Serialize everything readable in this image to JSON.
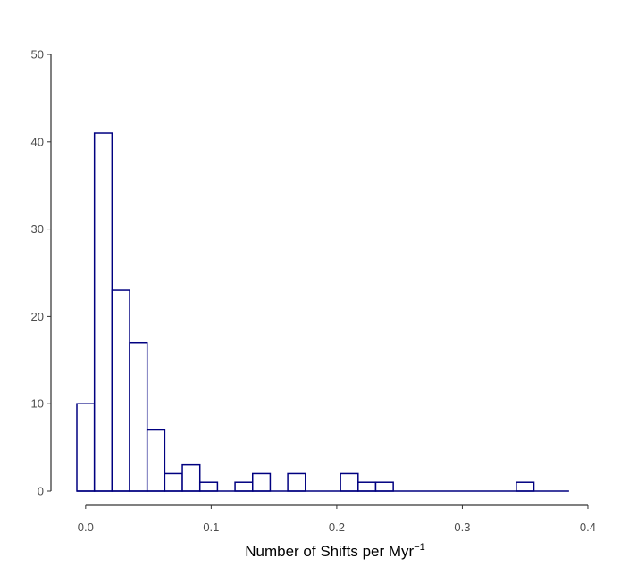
{
  "chart_data": {
    "type": "bar",
    "title": "",
    "xlabel": "Number of Shifts per Myr",
    "xlabel_superscript": "−1",
    "ylabel": "",
    "bin_width": 0.014,
    "bins_start": -0.007,
    "values": [
      10,
      41,
      23,
      17,
      7,
      2,
      3,
      1,
      0,
      1,
      2,
      0,
      2,
      0,
      0,
      2,
      1,
      1,
      0,
      0,
      0,
      0,
      0,
      0,
      0,
      1,
      0,
      0
    ],
    "xlim": [
      -0.007,
      0.405
    ],
    "ylim": [
      0,
      50
    ],
    "x_ticks": [
      0.0,
      0.1,
      0.2,
      0.3,
      0.4
    ],
    "x_tick_labels": [
      "0.0",
      "0.1",
      "0.2",
      "0.3",
      "0.4"
    ],
    "y_ticks": [
      0,
      10,
      20,
      30,
      40,
      50
    ],
    "y_tick_labels": [
      "0",
      "10",
      "20",
      "30",
      "40",
      "50"
    ],
    "grid": false,
    "bar_color": "#000080",
    "bar_fill": "#ffffff"
  }
}
